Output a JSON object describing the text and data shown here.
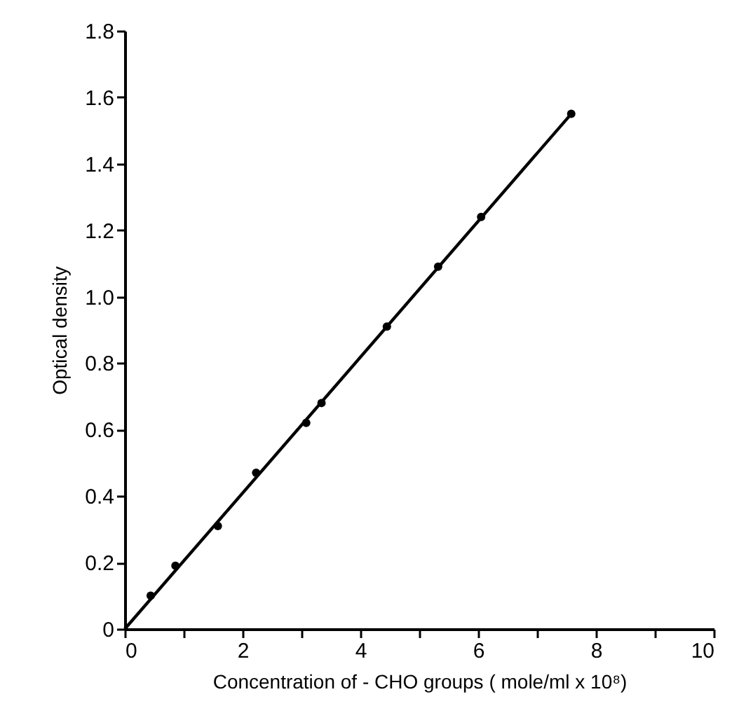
{
  "chart_data": {
    "type": "scatter",
    "xlabel": "Concentration of - CHO groups  ( mole/ml x 10⁸)",
    "ylabel": "Optical density",
    "xlim": [
      0,
      10
    ],
    "ylim": [
      0,
      1.8
    ],
    "xticks": [
      0,
      {
        "value": 1,
        "label": null
      },
      2,
      {
        "value": 3,
        "label": null
      },
      4,
      {
        "value": 5,
        "label": null
      },
      6,
      {
        "value": 7,
        "label": null
      },
      8,
      {
        "value": 9,
        "label": null
      },
      10
    ],
    "yticks": [
      0,
      0.2,
      0.4,
      0.6,
      0.8,
      {
        "value": 1.0,
        "label": "1.0"
      },
      1.2,
      1.4,
      1.6,
      1.8
    ],
    "grid": false,
    "marker": "circle",
    "series": [
      {
        "color": "#000000",
        "x": [
          0.44,
          0.86,
          1.58,
          2.23,
          3.08,
          3.34,
          4.45,
          5.32,
          6.05,
          7.58
        ],
        "values": [
          0.1,
          0.19,
          0.31,
          0.47,
          0.62,
          0.68,
          0.91,
          1.09,
          1.24,
          1.55
        ]
      },
      {
        "type": "line",
        "color": "#000000",
        "line_style": "solid",
        "marker": "none",
        "x": [
          0,
          7.58
        ],
        "values": [
          0,
          1.55
        ]
      }
    ]
  }
}
